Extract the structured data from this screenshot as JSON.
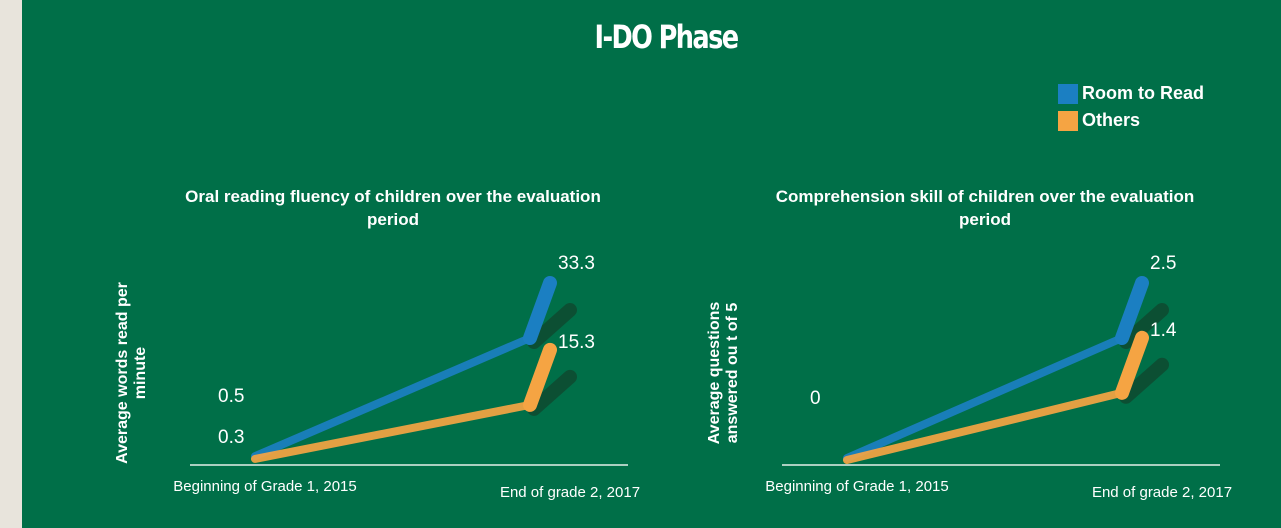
{
  "title": "I-DO Phase",
  "chart_data": [
    {
      "type": "line",
      "title": "Oral reading fluency of children over the evaluation period",
      "ylabel": "Average words read per minute",
      "categories": [
        "Beginning of Grade 1, 2015",
        "End of grade 2, 2017"
      ],
      "series": [
        {
          "name": "Room to Read",
          "color": "#1b7fc2",
          "values": [
            0.5,
            33.3
          ]
        },
        {
          "name": "Others",
          "color": "#f5a443",
          "values": [
            0.3,
            15.3
          ]
        }
      ]
    },
    {
      "type": "line",
      "title": "Comprehension skill of children over the evaluation period",
      "ylabel": "Average questions answered ou t of 5",
      "categories": [
        "Beginning of Grade 1, 2015",
        "End of grade 2, 2017"
      ],
      "series": [
        {
          "name": "Room to Read",
          "color": "#1b7fc2",
          "values": [
            0,
            2.5
          ]
        },
        {
          "name": "Others",
          "color": "#f5a443",
          "values": [
            0,
            1.4
          ],
          "value_labels": [
            null,
            "1.4"
          ]
        }
      ]
    }
  ]
}
